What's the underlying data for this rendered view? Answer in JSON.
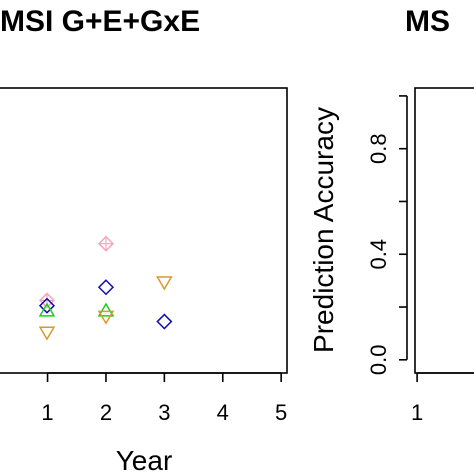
{
  "chart_data": [
    {
      "type": "scatter",
      "title": "MSI G+E+GxE",
      "xlabel": "Year",
      "ylabel": "",
      "xticks": [
        "1",
        "2",
        "3",
        "4",
        "5"
      ],
      "xlim": [
        0.1,
        5.1
      ],
      "ylim": [
        -0.05,
        1.03
      ],
      "series": [
        {
          "marker": "diamond-plus",
          "color": "#f4a7bc",
          "points": [
            {
              "x": 0.99,
              "y": 0.225
            },
            {
              "x": 2,
              "y": 0.44
            }
          ]
        },
        {
          "marker": "diamond",
          "color": "#1010b0",
          "points": [
            {
              "x": 0.99,
              "y": 0.205
            },
            {
              "x": 2,
              "y": 0.275
            },
            {
              "x": 3,
              "y": 0.145
            }
          ]
        },
        {
          "marker": "triangle-up",
          "color": "#22cc22",
          "points": [
            {
              "x": 0.99,
              "y": 0.185
            },
            {
              "x": 2,
              "y": 0.185
            }
          ]
        },
        {
          "marker": "triangle-down",
          "color": "#d99a2b",
          "points": [
            {
              "x": 0.99,
              "y": 0.105
            },
            {
              "x": 2,
              "y": 0.165
            },
            {
              "x": 3,
              "y": 0.295
            }
          ]
        }
      ]
    },
    {
      "type": "scatter",
      "title": "MS",
      "xlabel": "",
      "ylabel": "Prediction Accuracy",
      "xticks": [
        "1"
      ],
      "yticks": [
        "0.0",
        "0.4",
        "0.8"
      ],
      "xlim": [
        0.97,
        5
      ],
      "ylim": [
        -0.05,
        1.03
      ],
      "series": []
    }
  ]
}
